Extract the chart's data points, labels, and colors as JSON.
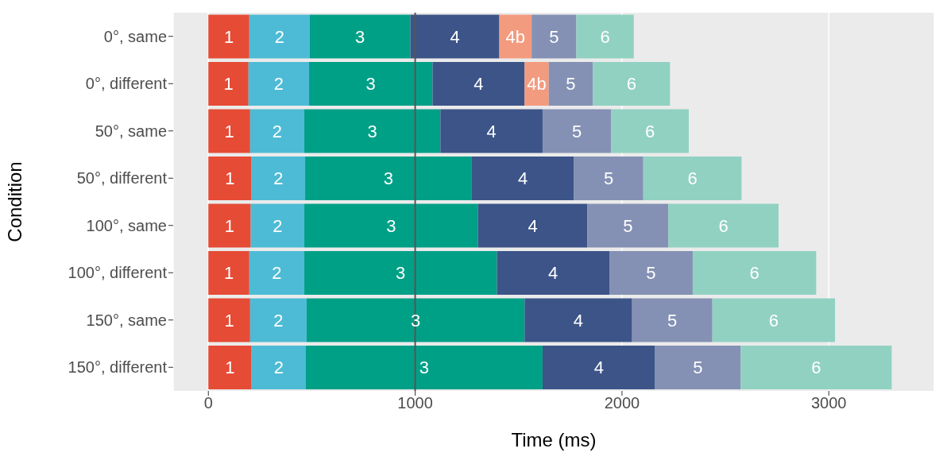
{
  "chart_data": {
    "type": "bar",
    "orientation": "horizontal",
    "stacked": true,
    "xlabel": "Time (ms)",
    "ylabel": "Condition",
    "categories": [
      "0°, same",
      "0°, different",
      "50°, same",
      "50°, different",
      "100°, same",
      "100°, different",
      "150°, same",
      "150°, different"
    ],
    "series": [
      {
        "name": "1",
        "color": "#e64b35",
        "values": [
          198,
          194,
          202,
          209,
          205,
          198,
          202,
          209
        ]
      },
      {
        "name": "2",
        "color": "#4dbbd5",
        "values": [
          292,
          293,
          262,
          259,
          259,
          266,
          273,
          262
        ]
      },
      {
        "name": "3",
        "color": "#00a087",
        "values": [
          487,
          597,
          658,
          806,
          840,
          931,
          1054,
          1145
        ]
      },
      {
        "name": "4",
        "color": "#3c5488",
        "values": [
          430,
          445,
          494,
          494,
          529,
          544,
          520,
          544
        ]
      },
      {
        "name": "4b",
        "color": "#f39b7f",
        "values": [
          156,
          117,
          null,
          null,
          null,
          null,
          null,
          null
        ]
      },
      {
        "name": "5",
        "color": "#8491b4",
        "values": [
          216,
          213,
          331,
          335,
          391,
          403,
          388,
          414
        ]
      },
      {
        "name": "6",
        "color": "#91d1c2",
        "values": [
          278,
          373,
          376,
          475,
          533,
          597,
          593,
          730
        ]
      }
    ],
    "xlim": [
      -170,
      3510
    ],
    "xticks": [
      0,
      1000,
      2000,
      3000
    ],
    "grid": "x",
    "legend": false,
    "ref_lines": [
      {
        "axis": "x",
        "value": 1000,
        "color": "#555555"
      }
    ]
  }
}
